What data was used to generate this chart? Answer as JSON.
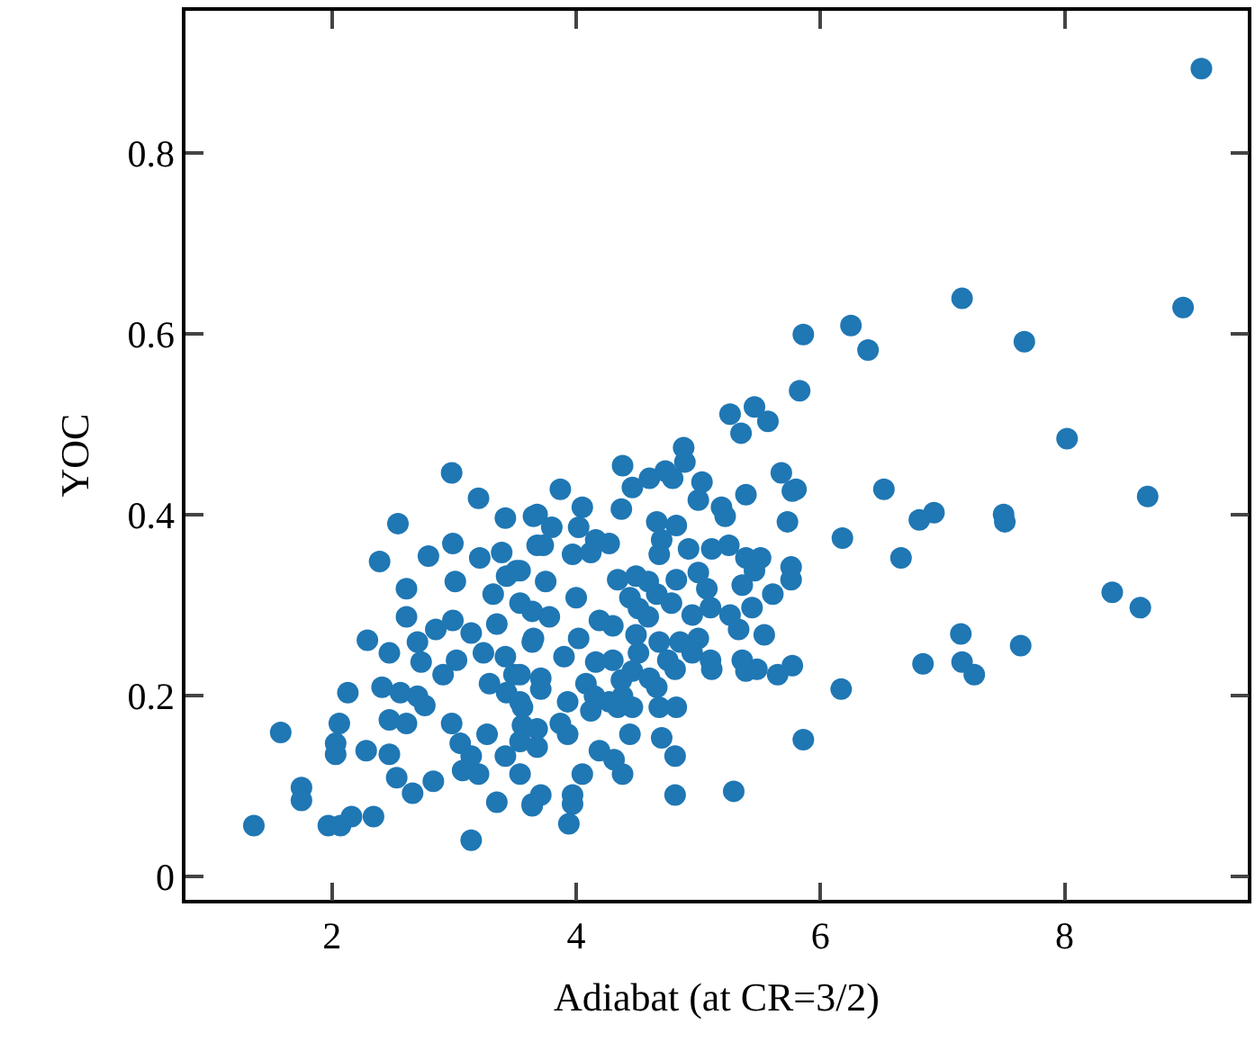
{
  "chart_data": {
    "type": "scatter",
    "xlabel": "Adiabat (at CR=3/2)",
    "ylabel": "YOC",
    "xlim": [
      0.8,
      9.5
    ],
    "ylim": [
      -0.026,
      0.957
    ],
    "xticks": [
      2,
      4,
      6,
      8
    ],
    "yticks": [
      0,
      0.2,
      0.4,
      0.6,
      0.8
    ],
    "marker": "circle",
    "series": [
      {
        "color": "#1f77b4",
        "x": [
          9.12,
          8.97,
          7.16,
          7.67,
          6.25,
          6.39,
          5.86,
          5.83,
          8.02,
          6.52,
          8.68,
          6.81,
          6.93,
          7.5,
          7.51,
          6.18,
          6.66,
          8.39,
          8.62,
          7.15,
          7.64,
          6.84,
          7.16,
          7.26,
          6.17,
          1.36,
          1.58,
          1.75,
          1.75,
          1.97,
          2.07,
          2.16,
          2.34,
          2.03,
          2.03,
          2.06,
          2.13,
          2.28,
          2.47,
          2.29,
          2.39,
          2.54,
          2.53,
          2.66,
          2.83,
          2.47,
          2.61,
          2.79,
          2.61,
          2.7,
          2.85,
          2.99,
          2.98,
          3.2,
          3.42,
          2.99,
          3.01,
          3.21,
          3.39,
          3.43,
          3.51,
          3.32,
          3.35,
          3.14,
          3.02,
          2.91,
          2.73,
          2.41,
          2.56,
          2.7,
          2.47,
          2.61,
          2.76,
          2.98,
          3.05,
          3.14,
          3.07,
          3.2,
          3.27,
          3.42,
          3.54,
          3.14,
          3.35,
          3.64,
          3.24,
          3.42,
          3.49,
          3.64,
          3.29,
          3.43,
          3.56,
          3.65,
          3.68,
          5.26,
          5.46,
          5.57,
          5.35,
          5.68,
          5.8,
          5.77,
          5.39,
          5.73,
          4.88,
          4.89,
          4.38,
          4.46,
          4.6,
          4.73,
          4.79,
          5.03,
          5.0,
          5.19,
          5.22,
          3.87,
          3.68,
          4.05,
          4.37,
          3.8,
          4.02,
          4.16,
          4.27,
          3.73,
          3.97,
          4.12,
          4.66,
          4.82,
          4.7,
          4.68,
          4.92,
          5.11,
          5.25,
          5.39,
          5.51,
          5.46,
          5.76,
          5.76,
          5.36,
          5.61,
          4.34,
          4.49,
          4.59,
          4.66,
          4.44,
          4.51,
          4.59,
          4.82,
          5.0,
          5.07,
          4.78,
          4.95,
          5.1,
          5.26,
          5.44,
          5.33,
          5.54,
          3.54,
          3.54,
          3.75,
          3.78,
          3.64,
          4.0,
          4.19,
          4.3,
          4.02,
          3.65,
          4.49,
          4.68,
          4.85,
          5.0,
          4.51,
          4.75,
          4.95,
          5.1,
          4.81,
          5.11,
          5.36,
          5.48,
          5.65,
          5.77,
          5.39,
          3.9,
          4.16,
          4.3,
          4.37,
          4.46,
          4.6,
          4.08,
          4.15,
          4.27,
          4.38,
          4.66,
          4.68,
          4.82,
          3.93,
          4.12,
          4.34,
          4.46,
          3.54,
          3.71,
          3.71,
          3.54,
          3.56,
          3.68,
          3.54,
          3.68,
          3.87,
          3.93,
          4.19,
          4.31,
          4.44,
          4.38,
          4.7,
          4.81,
          4.05,
          3.97,
          3.97,
          3.71,
          3.64,
          3.94,
          4.81,
          5.29,
          5.86
        ],
        "values": [
          0.893,
          0.629,
          0.639,
          0.591,
          0.609,
          0.582,
          0.599,
          0.537,
          0.484,
          0.428,
          0.42,
          0.394,
          0.402,
          0.4,
          0.392,
          0.374,
          0.352,
          0.314,
          0.297,
          0.268,
          0.255,
          0.235,
          0.237,
          0.223,
          0.207,
          0.056,
          0.159,
          0.098,
          0.084,
          0.056,
          0.056,
          0.066,
          0.066,
          0.147,
          0.135,
          0.169,
          0.203,
          0.139,
          0.135,
          0.261,
          0.348,
          0.39,
          0.109,
          0.092,
          0.105,
          0.247,
          0.318,
          0.354,
          0.287,
          0.259,
          0.273,
          0.283,
          0.446,
          0.418,
          0.396,
          0.368,
          0.326,
          0.352,
          0.358,
          0.332,
          0.338,
          0.312,
          0.279,
          0.269,
          0.239,
          0.223,
          0.237,
          0.209,
          0.203,
          0.199,
          0.173,
          0.169,
          0.189,
          0.169,
          0.147,
          0.133,
          0.117,
          0.113,
          0.157,
          0.133,
          0.113,
          0.04,
          0.082,
          0.078,
          0.247,
          0.243,
          0.223,
          0.259,
          0.213,
          0.203,
          0.187,
          0.398,
          0.366,
          0.511,
          0.519,
          0.503,
          0.49,
          0.446,
          0.428,
          0.426,
          0.422,
          0.392,
          0.474,
          0.458,
          0.454,
          0.43,
          0.44,
          0.448,
          0.44,
          0.436,
          0.416,
          0.408,
          0.398,
          0.428,
          0.4,
          0.408,
          0.406,
          0.386,
          0.386,
          0.372,
          0.368,
          0.366,
          0.356,
          0.358,
          0.392,
          0.388,
          0.372,
          0.356,
          0.362,
          0.362,
          0.366,
          0.352,
          0.352,
          0.338,
          0.342,
          0.328,
          0.322,
          0.312,
          0.328,
          0.332,
          0.326,
          0.312,
          0.308,
          0.296,
          0.287,
          0.328,
          0.336,
          0.318,
          0.302,
          0.289,
          0.297,
          0.289,
          0.297,
          0.273,
          0.267,
          0.338,
          0.302,
          0.326,
          0.287,
          0.293,
          0.308,
          0.283,
          0.277,
          0.263,
          0.263,
          0.267,
          0.259,
          0.259,
          0.263,
          0.247,
          0.239,
          0.247,
          0.239,
          0.229,
          0.229,
          0.239,
          0.229,
          0.223,
          0.233,
          0.227,
          0.243,
          0.237,
          0.239,
          0.217,
          0.227,
          0.219,
          0.213,
          0.199,
          0.193,
          0.199,
          0.209,
          0.187,
          0.187,
          0.193,
          0.183,
          0.187,
          0.187,
          0.223,
          0.219,
          0.207,
          0.193,
          0.167,
          0.163,
          0.149,
          0.143,
          0.169,
          0.157,
          0.139,
          0.129,
          0.157,
          0.113,
          0.153,
          0.133,
          0.113,
          0.09,
          0.08,
          0.09,
          0.08,
          0.058,
          0.09,
          0.094,
          0.151
        ]
      }
    ]
  }
}
